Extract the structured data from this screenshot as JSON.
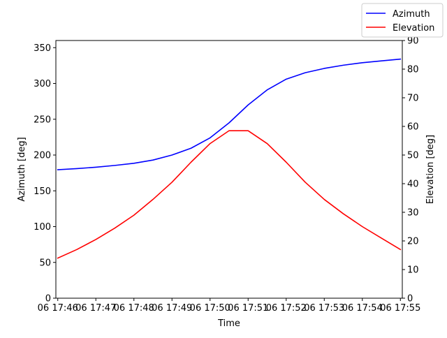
{
  "chart_data": {
    "type": "line",
    "xlabel": "Time",
    "ylabel_left": "Azimuth [deg]",
    "ylabel_right": "Elevation [deg]",
    "x_tick_labels": [
      "06 17:46",
      "06 17:47",
      "06 17:48",
      "06 17:49",
      "06 17:50",
      "06 17:51",
      "06 17:52",
      "06 17:53",
      "06 17:54",
      "06 17:55"
    ],
    "x_range_minutes": [
      17.45,
      26.55
    ],
    "ylim_left": [
      0,
      360
    ],
    "yticks_left": [
      0,
      50,
      100,
      150,
      200,
      250,
      300,
      350
    ],
    "ylim_right": [
      0,
      90
    ],
    "yticks_right": [
      0,
      10,
      20,
      30,
      40,
      50,
      60,
      70,
      80,
      90
    ],
    "grid": false,
    "legend_position": "top-right",
    "x_minutes": [
      17.5,
      18.0,
      18.5,
      19.0,
      19.5,
      20.0,
      20.5,
      21.0,
      21.5,
      22.0,
      22.5,
      23.0,
      23.5,
      24.0,
      24.5,
      25.0,
      25.5,
      26.0,
      26.5
    ],
    "series": [
      {
        "name": "Azimuth",
        "axis": "left",
        "color": "#0000ff",
        "values": [
          179.5,
          181.0,
          183.0,
          185.5,
          188.5,
          193.0,
          200.0,
          209.5,
          224.0,
          245.0,
          270.0,
          291.0,
          306.0,
          315.0,
          321.0,
          325.5,
          329.0,
          331.5,
          334.0
        ]
      },
      {
        "name": "Elevation",
        "axis": "right",
        "color": "#ff0000",
        "values": [
          14.0,
          17.0,
          20.5,
          24.5,
          29.0,
          34.5,
          40.5,
          47.5,
          54.0,
          58.5,
          58.5,
          54.0,
          47.5,
          40.5,
          34.5,
          29.5,
          25.0,
          21.0,
          17.0
        ]
      }
    ]
  }
}
